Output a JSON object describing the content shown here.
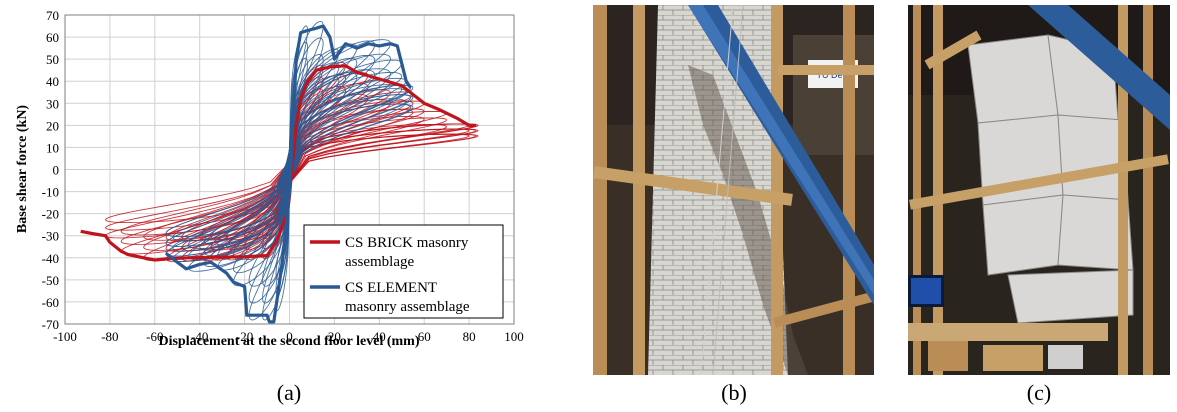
{
  "chart_data": {
    "type": "line",
    "title": "",
    "xlabel": "Displacement at the second floor level (mm)",
    "ylabel": "Base shear force (kN)",
    "xlim": [
      -100,
      100
    ],
    "ylim": [
      -70,
      70
    ],
    "x_ticks": [
      "-100",
      "-80",
      "-60",
      "-40",
      "-20",
      "0",
      "20",
      "40",
      "60",
      "80",
      "100"
    ],
    "y_ticks": [
      "70",
      "60",
      "50",
      "40",
      "30",
      "20",
      "10",
      "0",
      "-10",
      "-20",
      "-30",
      "-40",
      "-50",
      "-60",
      "-70"
    ],
    "grid": true,
    "legend_position": "bottom-right",
    "legend": [
      {
        "label_line1": "CS BRICK masonry",
        "label_line2": "assemblage",
        "color": "#c0141c"
      },
      {
        "label_line1": "CS ELEMENT",
        "label_line2": "masonry assemblage",
        "color": "#2a5a93"
      }
    ],
    "series": [
      {
        "name": "CS BRICK masonry assemblage",
        "color": "#c0141c",
        "envelope": [
          [
            -93,
            -28
          ],
          [
            -88,
            -29
          ],
          [
            -82,
            -30
          ],
          [
            -80,
            -33
          ],
          [
            -75,
            -37
          ],
          [
            -72,
            -38.5
          ],
          [
            -65,
            -40
          ],
          [
            -60,
            -41
          ],
          [
            -55,
            -40.5
          ],
          [
            -45,
            -40
          ],
          [
            -20,
            -39.5
          ],
          [
            -10,
            -39
          ],
          [
            -6,
            -33
          ],
          [
            -3,
            -25
          ],
          [
            -1,
            -20
          ],
          [
            0,
            -12
          ],
          [
            1,
            0
          ],
          [
            2,
            10
          ],
          [
            3,
            20
          ],
          [
            5,
            32
          ],
          [
            8,
            40
          ],
          [
            12,
            45
          ],
          [
            18,
            46.5
          ],
          [
            25,
            47
          ],
          [
            30,
            44
          ],
          [
            40,
            41
          ],
          [
            50,
            38
          ],
          [
            55,
            34
          ],
          [
            60,
            30
          ],
          [
            67,
            27
          ],
          [
            75,
            23
          ],
          [
            80,
            20
          ],
          [
            83,
            20
          ]
        ],
        "loop_amplitudes": [
          [
            15,
            -12
          ],
          [
            25,
            -20
          ],
          [
            35,
            -28
          ],
          [
            45,
            -35
          ],
          [
            55,
            -40
          ],
          [
            60,
            -48
          ],
          [
            70,
            -55
          ],
          [
            80,
            -65
          ],
          [
            83,
            -75
          ],
          [
            84,
            -82
          ]
        ]
      },
      {
        "name": "CS ELEMENT masonry assemblage",
        "color": "#2a5a93",
        "envelope": [
          [
            -55,
            -38
          ],
          [
            -50,
            -42
          ],
          [
            -46,
            -45
          ],
          [
            -40,
            -43
          ],
          [
            -35,
            -42
          ],
          [
            -28,
            -47
          ],
          [
            -25,
            -51
          ],
          [
            -20,
            -53
          ],
          [
            -19,
            -66
          ],
          [
            -15,
            -66
          ],
          [
            -10,
            -66
          ],
          [
            -9,
            -69
          ],
          [
            -7,
            -69
          ],
          [
            -5,
            -55
          ],
          [
            -3,
            -40
          ],
          [
            -1,
            -20
          ],
          [
            0,
            -10
          ],
          [
            1,
            10
          ],
          [
            2,
            30
          ],
          [
            3,
            50
          ],
          [
            5,
            62
          ],
          [
            8,
            63
          ],
          [
            12,
            64
          ],
          [
            15,
            65
          ],
          [
            18,
            60
          ],
          [
            20,
            50
          ],
          [
            25,
            57
          ],
          [
            30,
            55
          ],
          [
            35,
            57
          ],
          [
            40,
            56
          ],
          [
            45,
            57
          ],
          [
            48,
            56
          ],
          [
            52,
            40
          ],
          [
            54,
            37
          ]
        ],
        "loop_amplitudes": [
          [
            8,
            -6
          ],
          [
            15,
            -12
          ],
          [
            22,
            -18
          ],
          [
            30,
            -25
          ],
          [
            38,
            -32
          ],
          [
            45,
            -38
          ],
          [
            50,
            -45
          ],
          [
            52,
            -52
          ],
          [
            54,
            -55
          ],
          [
            55,
            -55
          ]
        ]
      }
    ]
  },
  "panels": {
    "a": "(a)",
    "b": "(b)",
    "c": "(c)"
  },
  "photos": {
    "b": {
      "banner_text": "TU Delft"
    }
  }
}
